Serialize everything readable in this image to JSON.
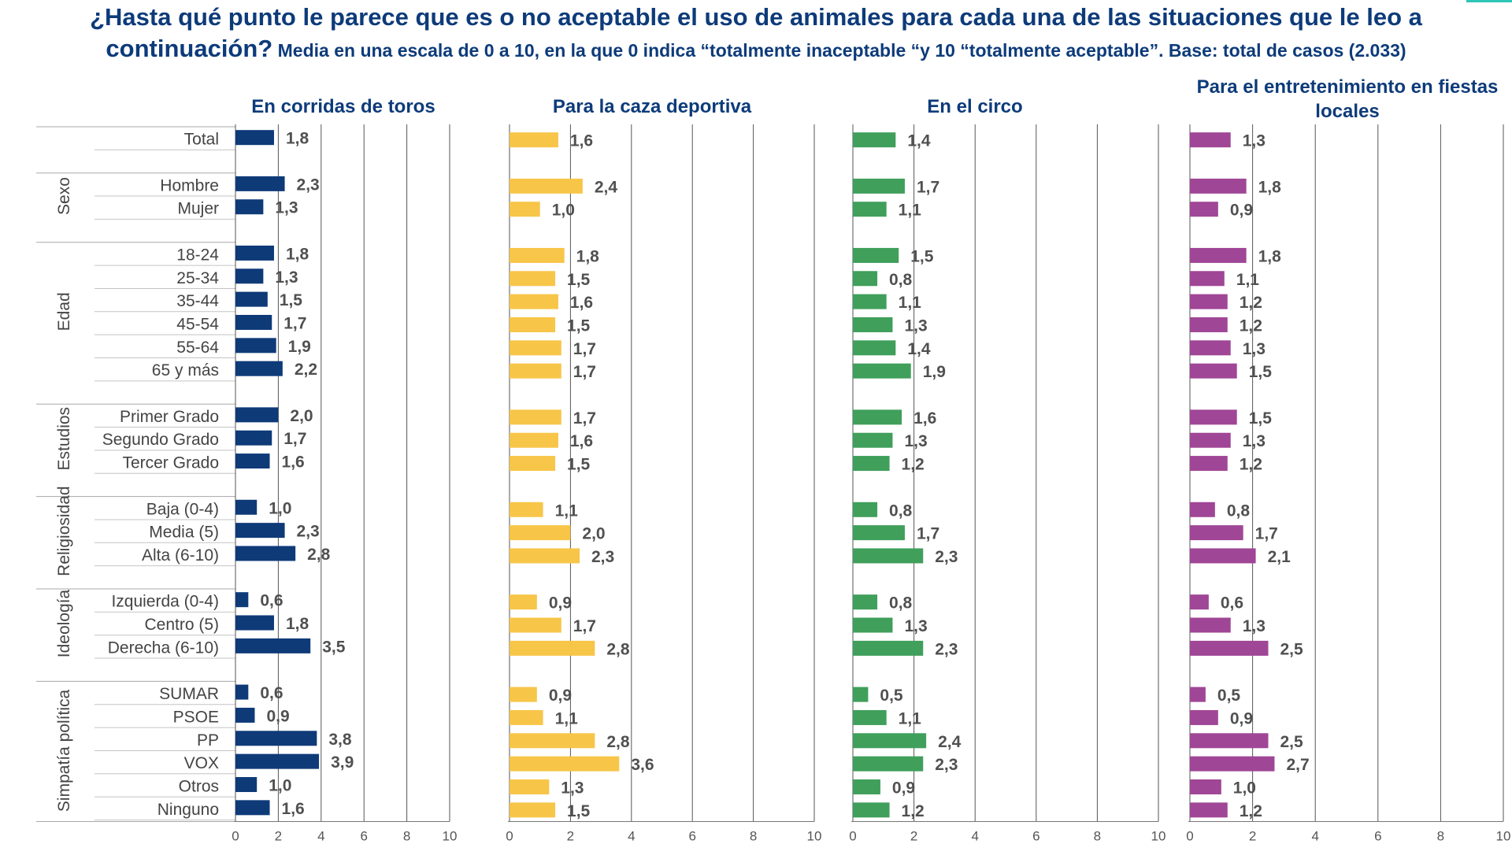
{
  "title": {
    "line1": "¿Hasta qué punto le parece que es o no aceptable el uso de animales para cada una de las situaciones que le leo a",
    "line2": "continuación?",
    "subtitle": " Media en una escala de 0 a 10,  en la que 0 indica “totalmente inaceptable “y 10 “totalmente aceptable”. Base: total de casos (2.033)"
  },
  "colors": {
    "title": "#0d3b7a",
    "accent": "#2ec4b6",
    "series": [
      "#0e3a78",
      "#f7c548",
      "#3f9f5b",
      "#a04696"
    ]
  },
  "chart_data": {
    "type": "bar",
    "orientation": "horizontal",
    "xlim": [
      0,
      10
    ],
    "xticks": [
      0,
      2,
      4,
      6,
      8,
      10
    ],
    "grid": true,
    "groups": [
      {
        "label": "",
        "rows": [
          "Total"
        ]
      },
      {
        "label": "Sexo",
        "rows": [
          "Hombre",
          "Mujer"
        ]
      },
      {
        "label": "Edad",
        "rows": [
          "18-24",
          "25-34",
          "35-44",
          "45-54",
          "55-64",
          "65 y más"
        ]
      },
      {
        "label": "Estudios",
        "rows": [
          "Primer Grado",
          "Segundo Grado",
          "Tercer Grado"
        ]
      },
      {
        "label": "Religiosidad",
        "rows": [
          "Baja (0-4)",
          "Media (5)",
          "Alta (6-10)"
        ]
      },
      {
        "label": "Ideología",
        "rows": [
          "Izquierda (0-4)",
          "Centro (5)",
          "Derecha (6-10)"
        ]
      },
      {
        "label": "Simpatía política",
        "rows": [
          "SUMAR",
          "PSOE",
          "PP",
          "VOX",
          "Otros",
          "Ninguno"
        ]
      }
    ],
    "series": [
      {
        "name": "En corridas de toros",
        "values": [
          1.8,
          2.3,
          1.3,
          1.8,
          1.3,
          1.5,
          1.7,
          1.9,
          2.2,
          2.0,
          1.7,
          1.6,
          1.0,
          2.3,
          2.8,
          0.6,
          1.8,
          3.5,
          0.6,
          0.9,
          3.8,
          3.9,
          1.0,
          1.6
        ]
      },
      {
        "name": "Para la caza deportiva",
        "values": [
          1.6,
          2.4,
          1.0,
          1.8,
          1.5,
          1.6,
          1.5,
          1.7,
          1.7,
          1.7,
          1.6,
          1.5,
          1.1,
          2.0,
          2.3,
          0.9,
          1.7,
          2.8,
          0.9,
          1.1,
          2.8,
          3.6,
          1.3,
          1.5
        ]
      },
      {
        "name": "En el circo",
        "values": [
          1.4,
          1.7,
          1.1,
          1.5,
          0.8,
          1.1,
          1.3,
          1.4,
          1.9,
          1.6,
          1.3,
          1.2,
          0.8,
          1.7,
          2.3,
          0.8,
          1.3,
          2.3,
          0.5,
          1.1,
          2.4,
          2.3,
          0.9,
          1.2
        ]
      },
      {
        "name": "Para el entretenimiento en fiestas locales",
        "values": [
          1.3,
          1.8,
          0.9,
          1.8,
          1.1,
          1.2,
          1.2,
          1.3,
          1.5,
          1.5,
          1.3,
          1.2,
          0.8,
          1.7,
          2.1,
          0.6,
          1.3,
          2.5,
          0.5,
          0.9,
          2.5,
          2.7,
          1.0,
          1.2
        ]
      }
    ]
  }
}
